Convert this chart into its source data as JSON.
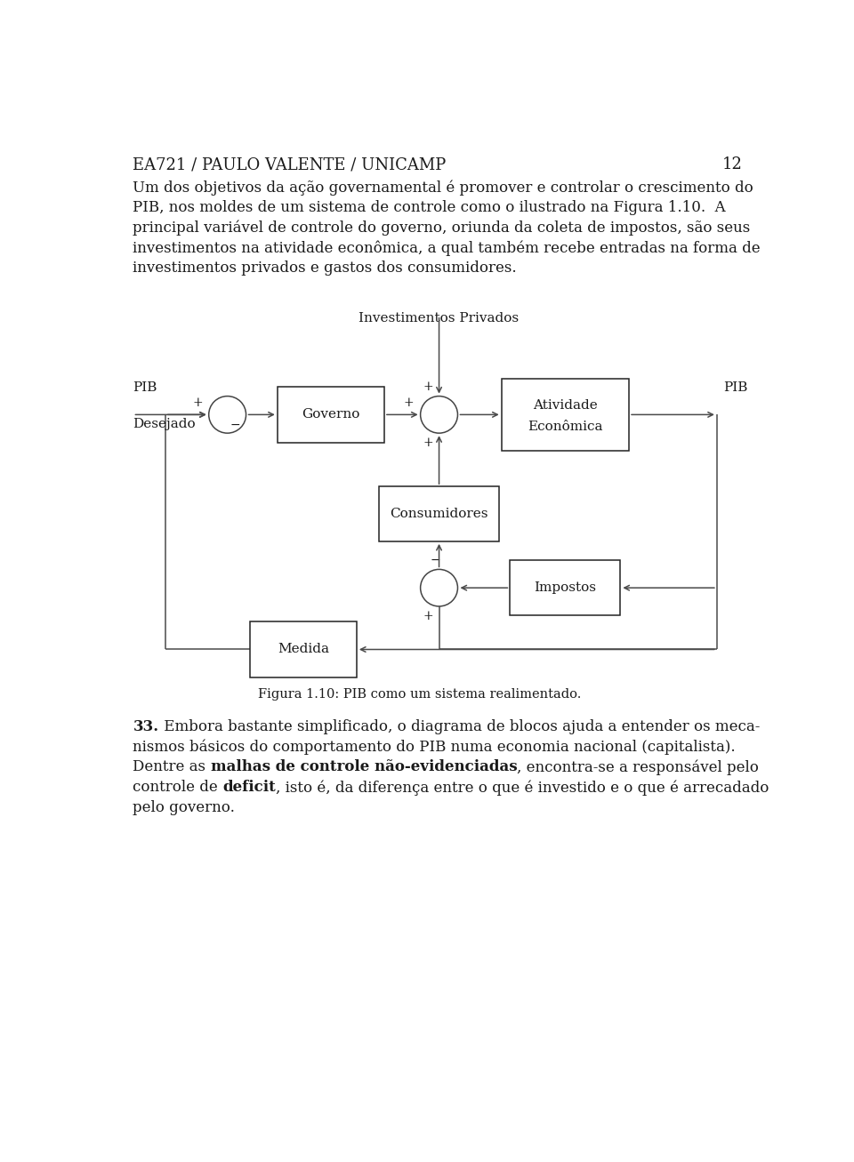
{
  "header": "EA721 / PAULO VALENTE / UNICAMP",
  "page_number": "12",
  "background_color": "#ffffff",
  "text_color": "#1a1a1a",
  "line_color": "#4a4a4a",
  "header_fontsize": 13,
  "body_fontsize": 12,
  "diagram_fontsize": 11,
  "p1_lines": [
    "Um dos objetivos da ação governamental é promover e controlar o crescimento do",
    "PIB, nos moldes de um sistema de controle como o ilustrado na Figura 1.10.  A",
    "principal variável de controle do governo, oriunda da coleta de impostos, são seus",
    "investimentos na atividade econômica, a qual também recebe entradas na forma de",
    "investimentos privados e gastos dos consumidores."
  ],
  "figure_caption": "Figura 1.10: PIB como um sistema realimentado.",
  "p2_lines": [
    [
      [
        "33.",
        true
      ],
      [
        " Embora bastante simplificado, o diagrama de blocos ajuda a entender os meca-",
        false
      ]
    ],
    [
      [
        "nismos básicos do comportamento do PIB numa economia nacional (capitalista).",
        false
      ]
    ],
    [
      [
        "Dentre as ",
        false
      ],
      [
        "malhas de controle não-evidenciadas",
        true
      ],
      [
        ", encontra-se a responsável pelo",
        false
      ]
    ],
    [
      [
        "controle de ",
        false
      ],
      [
        "deficit",
        true
      ],
      [
        ", isto é, da diferença entre o que é investido e o que é arrecadado",
        false
      ]
    ],
    [
      [
        "pelo governo.",
        false
      ]
    ]
  ]
}
